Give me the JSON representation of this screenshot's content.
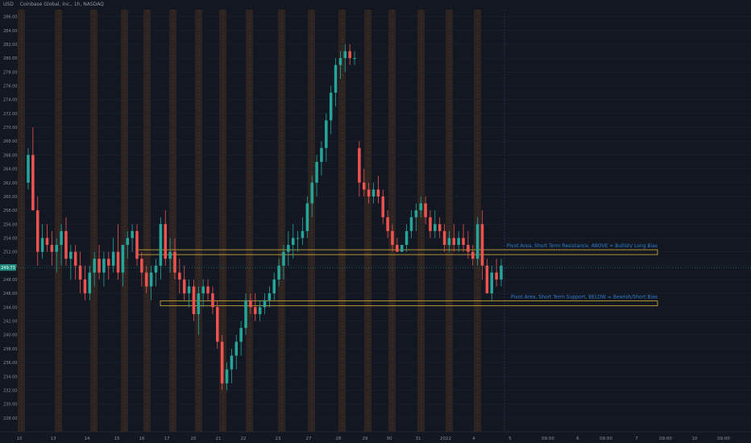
{
  "header": {
    "currency": "USD",
    "title": "Coinbase Global, Inc., 1h, NASDAQ"
  },
  "colors": {
    "background": "#131722",
    "up": "#26a69a",
    "down": "#ef5350",
    "grid": "#1f2330",
    "session_band": "#3a2a1d",
    "zone_border": "#d9b23c",
    "annotation": "#2f7fcf",
    "price_label_bg": "#1f8a7d"
  },
  "chart_data": {
    "type": "candlestick",
    "title": "Coinbase Global, Inc., 1h, NASDAQ",
    "currency": "USD",
    "ylim": [
      226,
      287
    ],
    "y_ticks": [
      228,
      230,
      232,
      234,
      236,
      238,
      240,
      242,
      244,
      246,
      248,
      250,
      252,
      254,
      256,
      258,
      260,
      262,
      264,
      266,
      268,
      270,
      272,
      274,
      276,
      278,
      280,
      282,
      284,
      286
    ],
    "x_tick_labels": [
      "10",
      "13",
      "14",
      "15",
      "16",
      "17",
      "20",
      "21",
      "22",
      "23",
      "27",
      "28",
      "29",
      "30",
      "31",
      "2022",
      "4",
      "5",
      "09:00",
      "6",
      "09:00",
      "7",
      "09:00",
      "10",
      "09:00"
    ],
    "current_price": "249.73",
    "zones": [
      {
        "name": "resistance",
        "from": 251.6,
        "to": 252.3,
        "label": "Pivot Area, Short Term Resistance, ABOVE = Bullish/ Long Bias"
      },
      {
        "name": "support",
        "from": 244.2,
        "to": 244.9,
        "label": "Pivot Area, Short Term Support, BELOW = Bearish/Short Bias"
      }
    ],
    "candles": [
      [
        262,
        267,
        261,
        266
      ],
      [
        266,
        270,
        258,
        258
      ],
      [
        258,
        260,
        250,
        252
      ],
      [
        252,
        256,
        251,
        254
      ],
      [
        254,
        256,
        252,
        253
      ],
      [
        253,
        255,
        250,
        252
      ],
      [
        252,
        254,
        249,
        253
      ],
      [
        253,
        256,
        250,
        255
      ],
      [
        255,
        257,
        250,
        251
      ],
      [
        251,
        253,
        248,
        252
      ],
      [
        252,
        253,
        248,
        250
      ],
      [
        250,
        252,
        246,
        248
      ],
      [
        248,
        250,
        245,
        246
      ],
      [
        246,
        250,
        245,
        249
      ],
      [
        249,
        252,
        247,
        251
      ],
      [
        251,
        253,
        248,
        249
      ],
      [
        249,
        252,
        247,
        251
      ],
      [
        251,
        252,
        248,
        250
      ],
      [
        250,
        254,
        249,
        252
      ],
      [
        252,
        256,
        248,
        249
      ],
      [
        249,
        253,
        247,
        253
      ],
      [
        253,
        255,
        251,
        254
      ],
      [
        254,
        256,
        252,
        255
      ],
      [
        255,
        256,
        250,
        251
      ],
      [
        251,
        252,
        247,
        249
      ],
      [
        249,
        250,
        246,
        247
      ],
      [
        247,
        250,
        245,
        249
      ],
      [
        249,
        251,
        247,
        250
      ],
      [
        250,
        257,
        248,
        256
      ],
      [
        256,
        258,
        250,
        251
      ],
      [
        251,
        254,
        249,
        252
      ],
      [
        252,
        254,
        248,
        249
      ],
      [
        249,
        251,
        246,
        248
      ],
      [
        248,
        250,
        245,
        246
      ],
      [
        246,
        248,
        244,
        247
      ],
      [
        247,
        248,
        242,
        243
      ],
      [
        243,
        247,
        240,
        246
      ],
      [
        246,
        248,
        244,
        247
      ],
      [
        247,
        248,
        245,
        246
      ],
      [
        246,
        247,
        243,
        244
      ],
      [
        244,
        245,
        238,
        239
      ],
      [
        239,
        240,
        232,
        233
      ],
      [
        233,
        236,
        232,
        235
      ],
      [
        235,
        238,
        233,
        237
      ],
      [
        237,
        240,
        235,
        239
      ],
      [
        239,
        242,
        237,
        241
      ],
      [
        241,
        246,
        240,
        245
      ],
      [
        245,
        246,
        243,
        244
      ],
      [
        244,
        246,
        242,
        243
      ],
      [
        243,
        245,
        242,
        244
      ],
      [
        244,
        246,
        243,
        245
      ],
      [
        245,
        247,
        244,
        246
      ],
      [
        246,
        249,
        245,
        248
      ],
      [
        248,
        251,
        247,
        250
      ],
      [
        250,
        253,
        248,
        252
      ],
      [
        252,
        255,
        250,
        253
      ],
      [
        253,
        256,
        251,
        254
      ],
      [
        254,
        255,
        252,
        254
      ],
      [
        254,
        257,
        253,
        255
      ],
      [
        255,
        260,
        254,
        259
      ],
      [
        259,
        263,
        257,
        262
      ],
      [
        262,
        266,
        260,
        265
      ],
      [
        265,
        268,
        263,
        267
      ],
      [
        267,
        272,
        265,
        271
      ],
      [
        271,
        276,
        269,
        275
      ],
      [
        275,
        280,
        273,
        279
      ],
      [
        279,
        281,
        277,
        280
      ],
      [
        280,
        282,
        278,
        281
      ],
      [
        281,
        282,
        279,
        280
      ],
      [
        280,
        281,
        279,
        280
      ],
      [
        267,
        268,
        260,
        262
      ],
      [
        262,
        264,
        260,
        261
      ],
      [
        261,
        262,
        259,
        260
      ],
      [
        260,
        262,
        259,
        261
      ],
      [
        261,
        263,
        259,
        260
      ],
      [
        260,
        261,
        256,
        257
      ],
      [
        257,
        258,
        254,
        255
      ],
      [
        255,
        256,
        252,
        253
      ],
      [
        253,
        254,
        252,
        252
      ],
      [
        252,
        253,
        252,
        253
      ],
      [
        253,
        256,
        252,
        255
      ],
      [
        255,
        258,
        254,
        257
      ],
      [
        257,
        259,
        255,
        258
      ],
      [
        258,
        260,
        257,
        259
      ],
      [
        259,
        260,
        256,
        257
      ],
      [
        257,
        258,
        254,
        255
      ],
      [
        255,
        258,
        254,
        256
      ],
      [
        256,
        257,
        254,
        255
      ],
      [
        255,
        256,
        252,
        253
      ],
      [
        253,
        255,
        252,
        254
      ],
      [
        254,
        256,
        252,
        253
      ],
      [
        253,
        255,
        252,
        254
      ],
      [
        254,
        256,
        252,
        253
      ],
      [
        253,
        255,
        251,
        252
      ],
      [
        252,
        253,
        250,
        251
      ],
      [
        251,
        257,
        250,
        256
      ],
      [
        256,
        258,
        248,
        250
      ],
      [
        250,
        251,
        246,
        246
      ],
      [
        246,
        250,
        245,
        249
      ],
      [
        249,
        251,
        247,
        248
      ],
      [
        248,
        251,
        247,
        250
      ]
    ]
  }
}
